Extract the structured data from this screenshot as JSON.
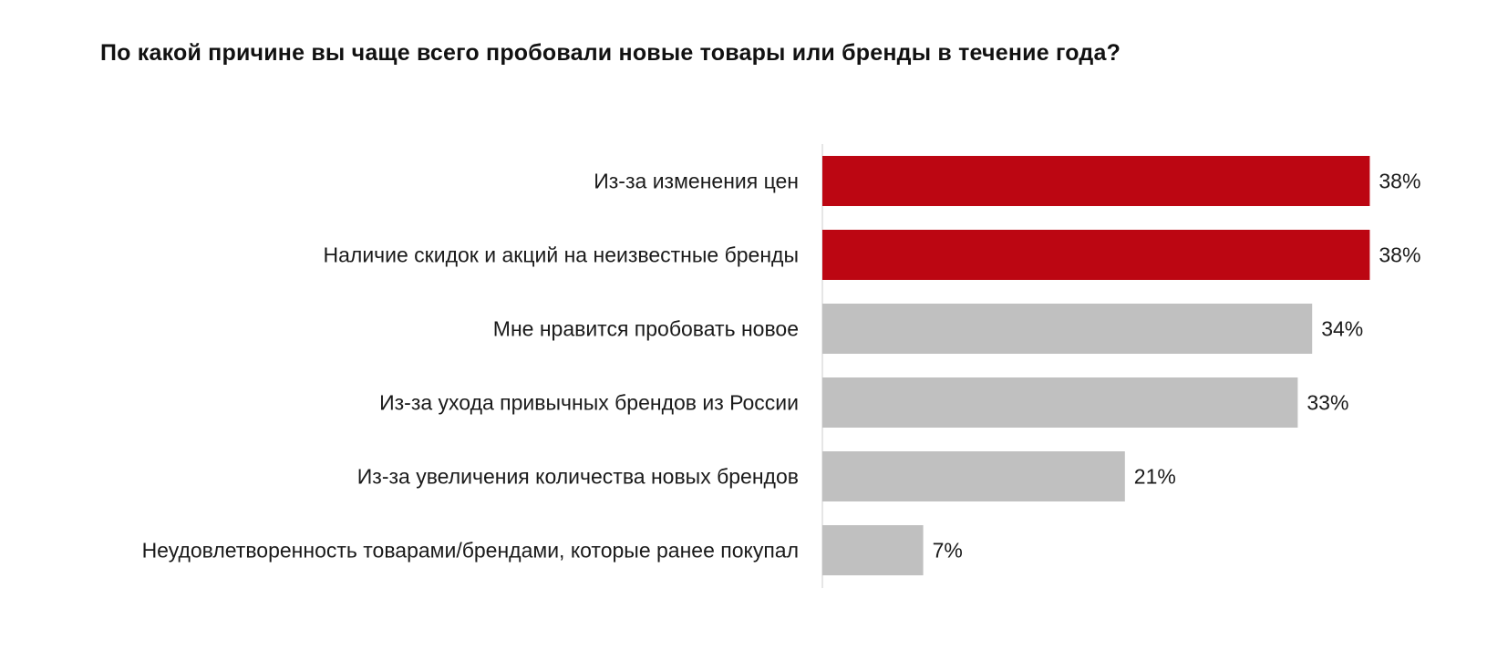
{
  "chart_data": {
    "type": "bar",
    "orientation": "horizontal",
    "title": "По какой причине вы чаще всего пробовали новые товары или бренды в течение года?",
    "categories": [
      "Из-за изменения цен",
      "Наличие скидок и акций на неизвестные бренды",
      "Мне нравится пробовать новое",
      "Из-за ухода привычных брендов из России",
      "Из-за увеличения количества новых брендов",
      "Неудовлетворенность товарами/брендами, которые ранее покупал"
    ],
    "values": [
      38,
      38,
      34,
      33,
      21,
      7
    ],
    "value_labels": [
      "38%",
      "38%",
      "34%",
      "33%",
      "21%",
      "7%"
    ],
    "highlighted": [
      true,
      true,
      false,
      false,
      false,
      false
    ],
    "colors": {
      "highlight": "#BC0612",
      "default": "#C0C0C0",
      "axis": "#DDDDDD"
    },
    "xlabel": "",
    "ylabel": ""
  }
}
